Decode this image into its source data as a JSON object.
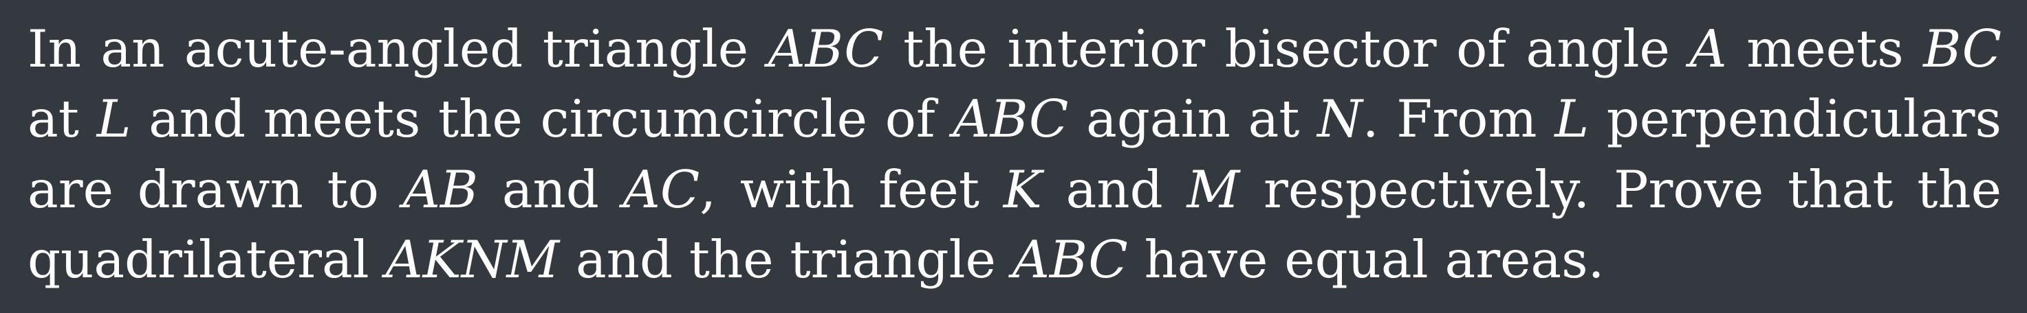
{
  "lines": [
    "In an acute-angled triangle ABC the interior bisector of angle A meets BC",
    "at L and meets the circumcircle of ABC again at N. From L perpendiculars",
    "are drawn to AB and AC, with feet K and M respectively. Prove that the",
    "quadrilateral AKNM and the triangle ABC have equal areas."
  ],
  "segments": {
    "l1": {
      "t1": "In an acute-angled triangle ",
      "m1": "ABC",
      "t2": " the interior bisector of angle ",
      "m2": "A",
      "t3": " meets ",
      "m3": "BC"
    },
    "l2": {
      "t1": "at ",
      "m1": "L",
      "t2": " and meets the circumcircle of ",
      "m2": "ABC",
      "t3": " again at ",
      "m3": "N",
      "t4": ". From ",
      "m4": "L",
      "t5": " perpendiculars"
    },
    "l3": {
      "t1": "are drawn to ",
      "m1": "AB",
      "t2": " and ",
      "m2": "AC",
      "t3": ", with feet ",
      "m3": "K",
      "t4": " and ",
      "m4": "M",
      "t5": " respectively. Prove that the"
    },
    "l4": {
      "t1": "quadrilateral ",
      "m1": "AKNM",
      "t2": " and the triangle ",
      "m2": "ABC",
      "t3": " have equal areas."
    }
  }
}
